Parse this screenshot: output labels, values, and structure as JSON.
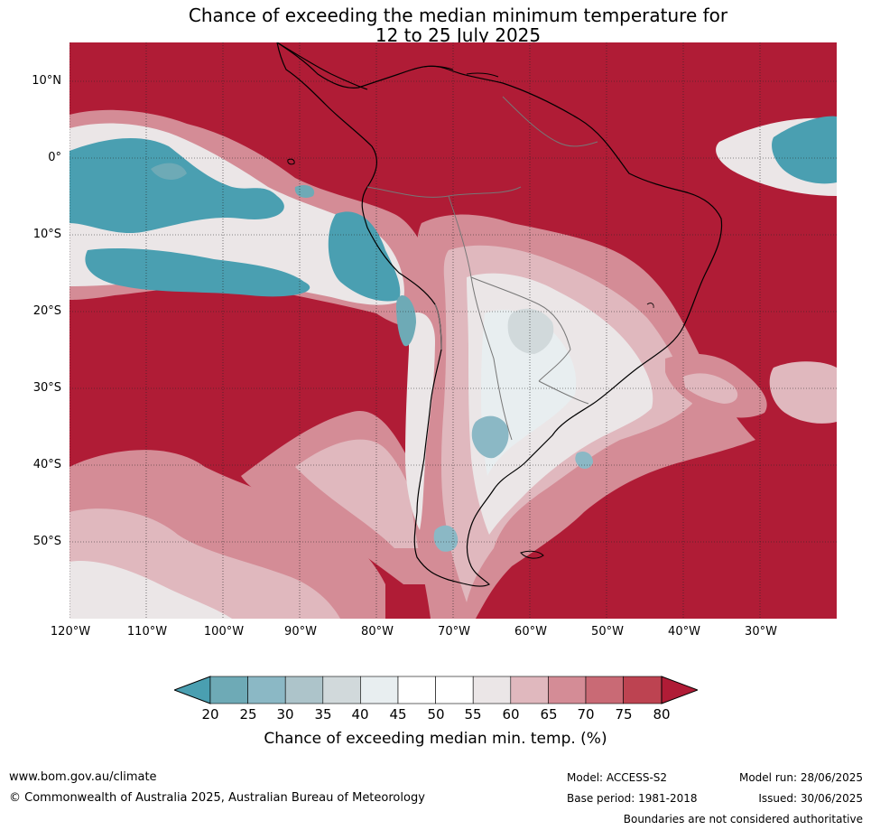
{
  "title": {
    "line1": "Chance of exceeding the median minimum temperature for",
    "line2": "12 to 25 July 2025"
  },
  "map": {
    "lat_labels": [
      "10°N",
      "0°",
      "10°S",
      "20°S",
      "30°S",
      "40°S",
      "50°S"
    ],
    "lon_labels": [
      "120°W",
      "110°W",
      "100°W",
      "90°W",
      "80°W",
      "70°W",
      "60°W",
      "50°W",
      "40°W",
      "30°W"
    ],
    "colors": {
      "c_lt20": "#4a9fb1",
      "c20_25": "#6eaab6",
      "c25_30": "#8bb8c5",
      "c30_35": "#adc4ca",
      "c35_40": "#d1d9db",
      "c40_45": "#e8eef0",
      "c45_50": "#ffffff",
      "c50_55": "#ffffff",
      "c55_60": "#ebe6e7",
      "c60_65": "#e0b8be",
      "c65_70": "#d48c96",
      "c70_75": "#c96a75",
      "c75_80": "#bd4351",
      "c_gt80": "#b01c36"
    }
  },
  "colorbar": {
    "ticks": [
      "20",
      "25",
      "30",
      "35",
      "40",
      "45",
      "50",
      "55",
      "60",
      "65",
      "70",
      "75",
      "80"
    ],
    "label": "Chance of exceeding median min. temp. (%)"
  },
  "footer": {
    "website": "www.bom.gov.au/climate",
    "copyright": "© Commonwealth of Australia 2025, Australian Bureau of Meteorology",
    "model": "Model: ACCESS-S2",
    "base_period": "Base period: 1981-2018",
    "model_run": "Model run: 28/06/2025",
    "issued": "Issued: 30/06/2025",
    "disclaimer": "Boundaries are not considered authoritative"
  }
}
